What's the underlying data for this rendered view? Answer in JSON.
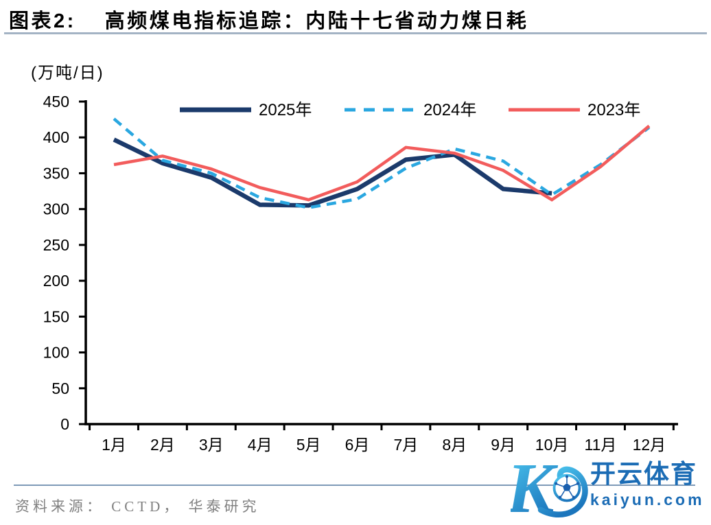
{
  "title": {
    "prefix": "图表2:",
    "text": "高频煤电指标追踪：内陆十七省动力煤日耗"
  },
  "unit_label": "(万吨/日)",
  "source": "资料来源： CCTD， 华泰研究",
  "watermark": {
    "letter": "K",
    "brand": "开云体育",
    "domain": "kaiyun.com",
    "color": "#1b6cb5"
  },
  "colors": {
    "axis": "#000000",
    "title_rule": "#a3b3c4",
    "footer_rule": "#7e99b7",
    "source_text": "#808080"
  },
  "chart_data": {
    "type": "line",
    "categories": [
      "1月",
      "2月",
      "3月",
      "4月",
      "5月",
      "6月",
      "7月",
      "8月",
      "9月",
      "10月",
      "11月",
      "12月"
    ],
    "series": [
      {
        "name": "2025年",
        "color": "#1b3a6b",
        "style": "solid",
        "width": 6.5,
        "values": [
          397,
          364,
          344,
          306,
          305,
          328,
          369,
          376,
          328,
          322,
          null,
          null
        ]
      },
      {
        "name": "2024年",
        "color": "#2aa7e0",
        "style": "dashed",
        "width": 4.5,
        "values": [
          426,
          368,
          350,
          316,
          302,
          314,
          357,
          384,
          367,
          320,
          362,
          414
        ]
      },
      {
        "name": "2023年",
        "color": "#f25c5c",
        "style": "solid",
        "width": 4.5,
        "values": [
          362,
          374,
          356,
          330,
          313,
          338,
          386,
          378,
          354,
          313,
          359,
          416
        ]
      }
    ],
    "ylabel": "(万吨/日)",
    "ylim": [
      0,
      450
    ],
    "ytick_step": 50,
    "legend_position": "top",
    "grid": false
  }
}
